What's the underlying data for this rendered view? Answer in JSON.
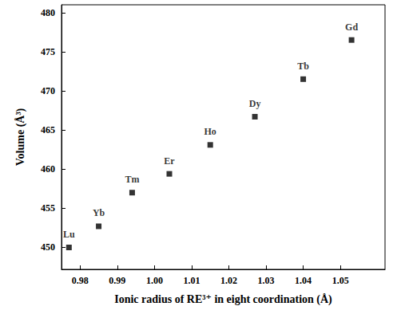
{
  "chart_data": {
    "type": "scatter",
    "x_label": "Ionic radius of RE³⁺ in eight coordination (Å)",
    "y_label": "Volume (Å³)",
    "x": [
      0.977,
      0.985,
      0.994,
      1.004,
      1.015,
      1.027,
      1.04,
      1.053
    ],
    "values": [
      450.0,
      452.7,
      457.0,
      459.4,
      463.1,
      466.7,
      471.5,
      476.5
    ],
    "point_labels": [
      "Lu",
      "Yb",
      "Tm",
      "Er",
      "Ho",
      "Dy",
      "Tb",
      "Gd"
    ],
    "color": "#000000",
    "marker": "square",
    "xlim": [
      0.975,
      1.062
    ],
    "xticks": [
      0.98,
      0.99,
      {
        "value": 1.0,
        "label": "1.00"
      },
      1.01,
      1.02,
      1.03,
      1.04,
      1.05
    ],
    "ylim": [
      447.2,
      481
    ],
    "yticks": [
      450,
      455,
      460,
      465,
      470,
      475,
      480
    ],
    "grid": false
  }
}
